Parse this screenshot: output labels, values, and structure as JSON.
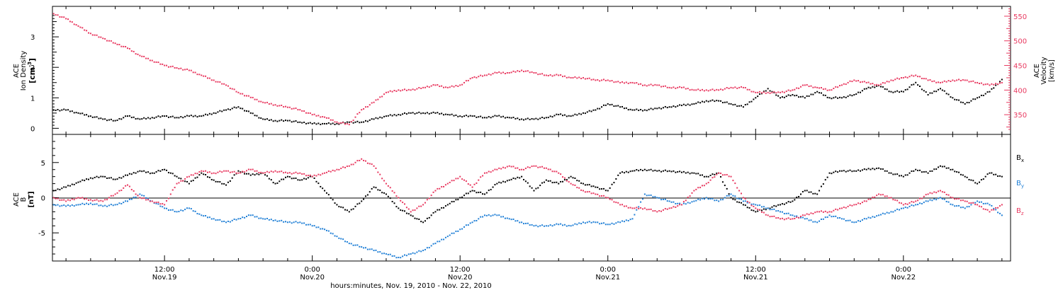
{
  "colors": {
    "black": "#000000",
    "pink": "#e8385f",
    "blue": "#1f7fd6"
  },
  "chart_data": [
    {
      "type": "scatter",
      "panel": "top",
      "left_axis": {
        "label_line1": "ACE",
        "label_line2": "Ion Density",
        "units": "[cm",
        "units_sup": "-3",
        "units_close": "]",
        "ylim": [
          -0.2,
          4.0
        ],
        "ticks": [
          "0",
          "1",
          "2",
          "3"
        ]
      },
      "right_axis": {
        "label_line1": "ACE",
        "label_line2": "Velocity",
        "units": "[km/s]",
        "ylim": [
          310,
          570
        ],
        "ticks": [
          "350",
          "400",
          "450",
          "500",
          "550"
        ]
      },
      "x_unit": "hours since 2010-11-19 00:00 UT",
      "xlim": [
        2.9,
        80.7
      ],
      "series": [
        {
          "key": "density",
          "axis": "left",
          "color": "#000000",
          "x": [
            3,
            4,
            5,
            6,
            7,
            8,
            9,
            10,
            11,
            12,
            13,
            14,
            15,
            16,
            17,
            18,
            19,
            20,
            21,
            22,
            23,
            24,
            25,
            26,
            27,
            28,
            29,
            30,
            31,
            32,
            33,
            34,
            35,
            36,
            37,
            38,
            39,
            40,
            41,
            42,
            43,
            44,
            45,
            46,
            47,
            48,
            49,
            50,
            51,
            52,
            53,
            54,
            55,
            56,
            57,
            58,
            59,
            60,
            61,
            62,
            63,
            64,
            65,
            66,
            67,
            68,
            69,
            70,
            71,
            72,
            73,
            74,
            75,
            76,
            77,
            78,
            79,
            80
          ],
          "y": [
            0.6,
            0.6,
            0.5,
            0.4,
            0.3,
            0.25,
            0.4,
            0.3,
            0.35,
            0.4,
            0.35,
            0.4,
            0.4,
            0.5,
            0.6,
            0.7,
            0.5,
            0.3,
            0.25,
            0.25,
            0.2,
            0.15,
            0.15,
            0.15,
            0.2,
            0.2,
            0.3,
            0.4,
            0.45,
            0.5,
            0.5,
            0.5,
            0.45,
            0.4,
            0.4,
            0.35,
            0.4,
            0.35,
            0.3,
            0.3,
            0.35,
            0.45,
            0.4,
            0.5,
            0.6,
            0.8,
            0.7,
            0.6,
            0.6,
            0.65,
            0.7,
            0.75,
            0.8,
            0.9,
            0.9,
            0.8,
            0.7,
            1.0,
            1.3,
            1.0,
            1.1,
            1.0,
            1.2,
            1.0,
            1.0,
            1.1,
            1.3,
            1.4,
            1.2,
            1.2,
            1.5,
            1.1,
            1.3,
            1.0,
            0.8,
            1.0,
            1.2,
            1.6
          ]
        },
        {
          "key": "velocity",
          "axis": "right",
          "color": "#e8385f",
          "x": [
            3,
            4,
            5,
            6,
            7,
            8,
            9,
            10,
            11,
            12,
            13,
            14,
            15,
            16,
            17,
            18,
            19,
            20,
            21,
            22,
            23,
            24,
            25,
            26,
            27,
            28,
            29,
            30,
            31,
            32,
            33,
            34,
            35,
            36,
            37,
            38,
            39,
            40,
            41,
            42,
            43,
            44,
            45,
            46,
            47,
            48,
            49,
            50,
            51,
            52,
            53,
            54,
            55,
            56,
            57,
            58,
            59,
            60,
            61,
            62,
            63,
            64,
            65,
            66,
            67,
            68,
            69,
            70,
            71,
            72,
            73,
            74,
            75,
            76,
            77,
            78,
            79,
            80
          ],
          "y": [
            555,
            545,
            530,
            515,
            505,
            495,
            485,
            470,
            460,
            450,
            445,
            440,
            430,
            420,
            410,
            395,
            385,
            375,
            370,
            365,
            360,
            350,
            345,
            335,
            330,
            360,
            375,
            395,
            400,
            400,
            405,
            410,
            405,
            410,
            425,
            430,
            435,
            435,
            440,
            435,
            430,
            430,
            425,
            425,
            420,
            420,
            415,
            415,
            410,
            410,
            405,
            405,
            400,
            400,
            400,
            405,
            405,
            395,
            395,
            395,
            400,
            410,
            405,
            400,
            410,
            420,
            415,
            410,
            420,
            425,
            430,
            420,
            415,
            420,
            420,
            415,
            410,
            415
          ]
        }
      ]
    },
    {
      "type": "scatter",
      "panel": "bottom",
      "left_axis": {
        "label_line1": "ACE",
        "label_line2": "B",
        "units": "[nT]",
        "ylim": [
          -9.0,
          9.0
        ],
        "ticks": [
          "-5",
          "0",
          "5"
        ]
      },
      "xlim": [
        2.9,
        80.7
      ],
      "legend": [
        {
          "base": "B",
          "sub": "x",
          "color": "#000000"
        },
        {
          "base": "B",
          "sub": "y",
          "color": "#1f7fd6"
        },
        {
          "base": "B",
          "sub": "z",
          "color": "#e8385f"
        }
      ],
      "series": [
        {
          "key": "bx",
          "color": "#000000",
          "x": [
            3,
            4,
            5,
            6,
            7,
            8,
            9,
            10,
            11,
            12,
            13,
            14,
            15,
            16,
            17,
            18,
            19,
            20,
            21,
            22,
            23,
            24,
            25,
            26,
            27,
            28,
            29,
            30,
            31,
            32,
            33,
            34,
            35,
            36,
            37,
            38,
            39,
            40,
            41,
            42,
            43,
            44,
            45,
            46,
            47,
            48,
            49,
            50,
            51,
            52,
            53,
            54,
            55,
            56,
            57,
            58,
            59,
            60,
            61,
            62,
            63,
            64,
            65,
            66,
            67,
            68,
            69,
            70,
            71,
            72,
            73,
            74,
            75,
            76,
            77,
            78,
            79,
            80
          ],
          "y": [
            1.0,
            1.5,
            2.2,
            2.8,
            3.0,
            2.6,
            3.2,
            3.8,
            3.5,
            4.0,
            3.0,
            2.0,
            3.5,
            2.5,
            1.8,
            3.8,
            3.2,
            3.5,
            2.0,
            3.0,
            2.5,
            3.0,
            1.0,
            -1.0,
            -2.0,
            -0.5,
            1.5,
            0.5,
            -1.5,
            -2.5,
            -3.5,
            -2.0,
            -1.0,
            0.0,
            1.0,
            0.5,
            2.0,
            2.5,
            3.0,
            1.0,
            2.5,
            2.0,
            3.0,
            2.0,
            1.5,
            1.0,
            3.5,
            3.8,
            4.0,
            3.8,
            3.8,
            3.6,
            3.5,
            3.0,
            3.5,
            0.0,
            -1.0,
            -2.0,
            -1.5,
            -1.0,
            -0.5,
            1.0,
            0.5,
            3.5,
            3.8,
            3.8,
            4.0,
            4.2,
            3.5,
            3.0,
            4.0,
            3.5,
            4.5,
            4.0,
            3.0,
            2.0,
            3.5,
            3.0
          ]
        },
        {
          "key": "by",
          "color": "#1f7fd6",
          "x": [
            3,
            4,
            5,
            6,
            7,
            8,
            9,
            10,
            11,
            12,
            13,
            14,
            15,
            16,
            17,
            18,
            19,
            20,
            21,
            22,
            23,
            24,
            25,
            26,
            27,
            28,
            29,
            30,
            31,
            32,
            33,
            34,
            35,
            36,
            37,
            38,
            39,
            40,
            41,
            42,
            43,
            44,
            45,
            46,
            47,
            48,
            49,
            50,
            51,
            52,
            53,
            54,
            55,
            56,
            57,
            58,
            59,
            60,
            61,
            62,
            63,
            64,
            65,
            66,
            67,
            68,
            69,
            70,
            71,
            72,
            73,
            74,
            75,
            76,
            77,
            78,
            79,
            80
          ],
          "y": [
            -1.0,
            -1.2,
            -1.0,
            -0.8,
            -1.2,
            -1.0,
            -0.5,
            0.5,
            -0.5,
            -1.5,
            -2.0,
            -1.5,
            -2.5,
            -3.0,
            -3.5,
            -3.0,
            -2.5,
            -3.0,
            -3.2,
            -3.5,
            -3.5,
            -4.0,
            -4.5,
            -5.5,
            -6.5,
            -7.0,
            -7.5,
            -8.0,
            -8.5,
            -8.0,
            -7.5,
            -6.5,
            -5.5,
            -4.5,
            -3.5,
            -2.5,
            -2.5,
            -3.0,
            -3.5,
            -4.0,
            -4.0,
            -3.8,
            -4.0,
            -3.5,
            -3.5,
            -3.8,
            -3.5,
            -3.0,
            0.5,
            0.0,
            -0.5,
            -1.0,
            -0.5,
            0.0,
            -0.5,
            0.5,
            -0.5,
            -1.0,
            -1.5,
            -2.0,
            -2.5,
            -3.0,
            -3.5,
            -2.5,
            -3.0,
            -3.5,
            -3.0,
            -2.5,
            -2.0,
            -1.5,
            -1.0,
            -0.5,
            0.0,
            -1.0,
            -1.5,
            -0.5,
            -1.0,
            -2.5
          ]
        },
        {
          "key": "bz",
          "color": "#e8385f",
          "x": [
            3,
            4,
            5,
            6,
            7,
            8,
            9,
            10,
            11,
            12,
            13,
            14,
            15,
            16,
            17,
            18,
            19,
            20,
            21,
            22,
            23,
            24,
            25,
            26,
            27,
            28,
            29,
            30,
            31,
            32,
            33,
            34,
            35,
            36,
            37,
            38,
            39,
            40,
            41,
            42,
            43,
            44,
            45,
            46,
            47,
            48,
            49,
            50,
            51,
            52,
            53,
            54,
            55,
            56,
            57,
            58,
            59,
            60,
            61,
            62,
            63,
            64,
            65,
            66,
            67,
            68,
            69,
            70,
            71,
            72,
            73,
            74,
            75,
            76,
            77,
            78,
            79,
            80
          ],
          "y": [
            0.0,
            -0.5,
            0.0,
            -0.3,
            -0.5,
            0.5,
            1.8,
            0.0,
            -0.5,
            -1.0,
            2.0,
            3.0,
            3.8,
            3.5,
            3.8,
            3.5,
            4.0,
            3.5,
            3.8,
            3.5,
            3.5,
            3.0,
            3.5,
            4.0,
            4.5,
            5.5,
            4.5,
            2.0,
            0.0,
            -2.0,
            -1.0,
            1.0,
            2.0,
            3.0,
            1.5,
            3.5,
            4.0,
            4.5,
            4.0,
            4.5,
            4.2,
            3.5,
            2.0,
            1.0,
            0.5,
            0.0,
            -1.0,
            -1.5,
            -1.5,
            -2.0,
            -1.5,
            -1.0,
            1.0,
            2.0,
            3.5,
            3.0,
            0.0,
            -1.5,
            -2.5,
            -3.0,
            -3.0,
            -2.5,
            -2.0,
            -2.0,
            -1.5,
            -1.0,
            -0.5,
            0.5,
            0.0,
            -1.0,
            -0.5,
            0.5,
            1.0,
            0.0,
            -0.5,
            -1.0,
            -2.0,
            -1.0
          ]
        }
      ]
    }
  ],
  "x_axis": {
    "ticks": [
      {
        "hour": 12,
        "time": "12:00",
        "date": "Nov.19"
      },
      {
        "hour": 24,
        "time": "0:00",
        "date": "Nov.20"
      },
      {
        "hour": 36,
        "time": "12:00",
        "date": "Nov.20"
      },
      {
        "hour": 48,
        "time": "0:00",
        "date": "Nov.21"
      },
      {
        "hour": 60,
        "time": "12:00",
        "date": "Nov.21"
      },
      {
        "hour": 72,
        "time": "0:00",
        "date": "Nov.22"
      }
    ],
    "title": "hours:minutes, Nov. 19, 2010 - Nov. 22, 2010"
  }
}
